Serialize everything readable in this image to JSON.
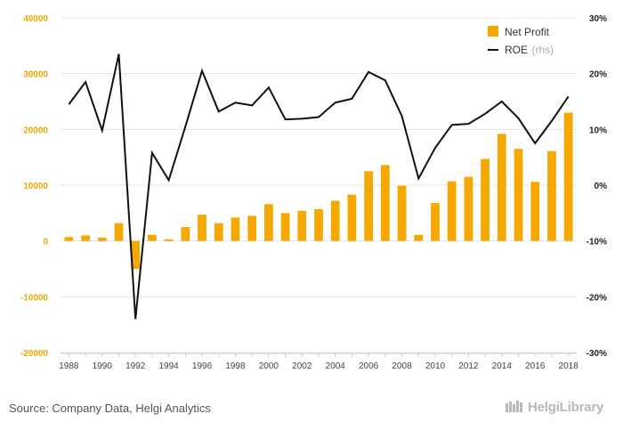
{
  "chart_data": {
    "type": "bar+line",
    "categories": [
      "1988",
      "1989",
      "1990",
      "1991",
      "1992",
      "1993",
      "1994",
      "1995",
      "1996",
      "1997",
      "1998",
      "1999",
      "2000",
      "2001",
      "2002",
      "2003",
      "2004",
      "2005",
      "2006",
      "2007",
      "2008",
      "2009",
      "2010",
      "2011",
      "2012",
      "2013",
      "2014",
      "2015",
      "2016",
      "2017",
      "2018"
    ],
    "x_tick_labels": [
      "1988",
      "1990",
      "1992",
      "1994",
      "1996",
      "1998",
      "2000",
      "2002",
      "2004",
      "2006",
      "2008",
      "2010",
      "2012",
      "2014",
      "2016",
      "2018"
    ],
    "series": [
      {
        "name": "Net Profit",
        "type": "bar",
        "axis": "left",
        "color": "#f5a800",
        "values": [
          700,
          1000,
          600,
          3200,
          -5000,
          1100,
          300,
          2500,
          4700,
          3200,
          4200,
          4500,
          6600,
          5000,
          5400,
          5700,
          7200,
          8300,
          12500,
          13600,
          9900,
          1100,
          6800,
          10700,
          11500,
          14700,
          19200,
          16500,
          10600,
          16100,
          23000
        ]
      },
      {
        "name": "ROE",
        "name_suffix": "(rhs)",
        "type": "line",
        "axis": "right",
        "color": "#111111",
        "values": [
          14.5,
          18.5,
          9.8,
          23.5,
          -24.0,
          5.8,
          0.9,
          10.5,
          20.5,
          13.2,
          14.8,
          14.3,
          17.5,
          11.8,
          11.9,
          12.2,
          14.8,
          15.5,
          20.3,
          18.8,
          12.4,
          1.2,
          6.7,
          10.8,
          11.0,
          12.8,
          15.0,
          12.0,
          7.5,
          11.5,
          15.9
        ]
      }
    ],
    "left_axis": {
      "ticks": [
        -20000,
        -10000,
        0,
        10000,
        20000,
        30000,
        40000
      ],
      "ylim": [
        -20000,
        40000
      ],
      "color": "#f0a800"
    },
    "right_axis": {
      "ticks": [
        "-30%",
        "-20%",
        "-10%",
        "0%",
        "10%",
        "20%",
        "30%"
      ],
      "tick_values": [
        -30,
        -20,
        -10,
        0,
        10,
        20,
        30
      ],
      "ylim": [
        -30,
        30
      ]
    },
    "grid": true,
    "legend_position": "top-right"
  },
  "footer": {
    "source": "Source: Company Data, Helgi Analytics",
    "brand": "HelgiLibrary"
  }
}
